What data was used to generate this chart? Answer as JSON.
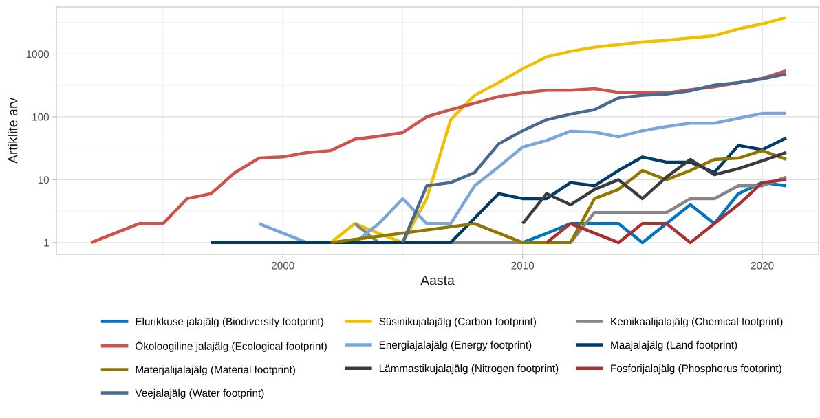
{
  "chart_data": {
    "type": "line",
    "xlabel": "Aasta",
    "ylabel": "Artiklite arv",
    "log": "y",
    "grid": true,
    "legend": "bottom",
    "line_style": "solid",
    "marker": "none",
    "xlim": [
      1990.55,
      2022.35
    ],
    "xticks": [
      2000,
      2010,
      2020
    ],
    "ylim": [
      0.65,
      5600
    ],
    "yticks": [
      1,
      10,
      100,
      1000
    ],
    "series": [
      {
        "name": "Elurikkuse jalajälg (Biodiversity footprint)",
        "color": "#0073c2",
        "x": [
          2010,
          2011,
          2012,
          2013,
          2014,
          2015,
          2016,
          2017,
          2018,
          2019,
          2020,
          2021
        ],
        "values": [
          1,
          1.4,
          2,
          2,
          2,
          1,
          2,
          4,
          2,
          6,
          9,
          8
        ]
      },
      {
        "name": "Süsinikujalajälg (Carbon footprint)",
        "color": "#efc000",
        "x": [
          2002,
          2003,
          2004,
          2005,
          2006,
          2007,
          2008,
          2009,
          2010,
          2011,
          2012,
          2013,
          2014,
          2015,
          2016,
          2017,
          2018,
          2019,
          2020,
          2021
        ],
        "values": [
          1,
          2,
          1.4,
          1,
          5,
          90,
          220,
          350,
          580,
          900,
          1100,
          1280,
          1400,
          1550,
          1650,
          1800,
          1950,
          2500,
          3000,
          3800
        ]
      },
      {
        "name": "Kemikaalijalajälg (Chemical footprint)",
        "color": "#868686",
        "x": [
          2003,
          2004,
          2005,
          2006,
          2007,
          2008,
          2009,
          2010,
          2011,
          2012,
          2013,
          2014,
          2015,
          2016,
          2017,
          2018,
          2019,
          2020,
          2021
        ],
        "values": [
          2,
          1,
          1,
          1,
          1,
          1,
          1,
          1,
          null,
          1,
          3,
          3,
          3,
          3,
          5,
          5,
          8,
          8,
          11
        ]
      },
      {
        "name": "Ökoloogiline jalajälg (Ecological footprint)",
        "color": "#cd534c",
        "x": [
          1992,
          1994,
          1995,
          1996,
          1997,
          1998,
          1999,
          2000,
          2001,
          2002,
          2003,
          2004,
          2005,
          2006,
          2007,
          2008,
          2009,
          2010,
          2011,
          2012,
          2013,
          2014,
          2015,
          2016,
          2017,
          2018,
          2019,
          2020,
          2021
        ],
        "values": [
          1,
          2,
          2,
          5,
          6,
          13,
          22,
          23,
          27,
          29,
          44,
          49,
          56,
          100,
          130,
          165,
          210,
          240,
          265,
          265,
          280,
          245,
          245,
          240,
          270,
          300,
          350,
          410,
          540
        ]
      },
      {
        "name": "Energiajalajälg (Energy footprint)",
        "color": "#7aa6dc",
        "x": [
          1999,
          2001,
          2002,
          2003,
          2004,
          2005,
          2006,
          2007,
          2008,
          2009,
          2010,
          2011,
          2012,
          2013,
          2014,
          2015,
          2016,
          2017,
          2018,
          2019,
          2020,
          2021
        ],
        "values": [
          2,
          1,
          1,
          1,
          2,
          5,
          2,
          2,
          8,
          16,
          33,
          42,
          59,
          57,
          48,
          60,
          70,
          79,
          79,
          95,
          113,
          113
        ]
      },
      {
        "name": "Maajalajälg (Land footprint)",
        "color": "#003c67",
        "x": [
          1997,
          1998,
          1999,
          2000,
          2001,
          2002,
          2003,
          2004,
          2005,
          2006,
          2007,
          2009,
          2010,
          2011,
          2012,
          2013,
          2014,
          2015,
          2016,
          2017,
          2018,
          2019,
          2020,
          2021
        ],
        "values": [
          1,
          1,
          1,
          1,
          1,
          1,
          1,
          1,
          1,
          1,
          1,
          6,
          5,
          5,
          9,
          8,
          14,
          23,
          19,
          19,
          13,
          35,
          30,
          46
        ]
      },
      {
        "name": "Materjalijalajälg (Material footprint)",
        "color": "#8f7700",
        "x": [
          2002,
          2008,
          2010,
          2011,
          2012,
          2013,
          2014,
          2015,
          2016,
          2017,
          2018,
          2019,
          2020,
          2021
        ],
        "values": [
          1,
          2,
          1,
          1,
          1,
          5,
          7,
          14,
          10,
          14,
          21,
          22,
          29,
          21
        ]
      },
      {
        "name": "Lämmastikujalajälg (Nitrogen footprint)",
        "color": "#3b3b3b",
        "x": [
          2010,
          2011,
          2012,
          2013,
          2014,
          2015,
          2016,
          2017,
          2018,
          2019,
          2020,
          2021
        ],
        "values": [
          2,
          6,
          4,
          7,
          10,
          5,
          11,
          21,
          12,
          15,
          20,
          27
        ]
      },
      {
        "name": "Fosforijalajälg (Phosphorus footprint)",
        "color": "#a73030",
        "x": [
          2011,
          2012,
          2014,
          2015,
          2016,
          2017,
          2018,
          2019,
          2020,
          2021
        ],
        "values": [
          1,
          2,
          1,
          2,
          2,
          1,
          2,
          4,
          9,
          10
        ]
      },
      {
        "name": "Veejalajälg (Water footprint)",
        "color": "#4a6990",
        "x": [
          2005,
          2006,
          2007,
          2008,
          2009,
          2010,
          2011,
          2012,
          2013,
          2014,
          2015,
          2016,
          2017,
          2018,
          2019,
          2020,
          2021
        ],
        "values": [
          1,
          8,
          9,
          13,
          37,
          60,
          90,
          110,
          130,
          200,
          220,
          230,
          260,
          320,
          350,
          400,
          480
        ]
      }
    ]
  }
}
